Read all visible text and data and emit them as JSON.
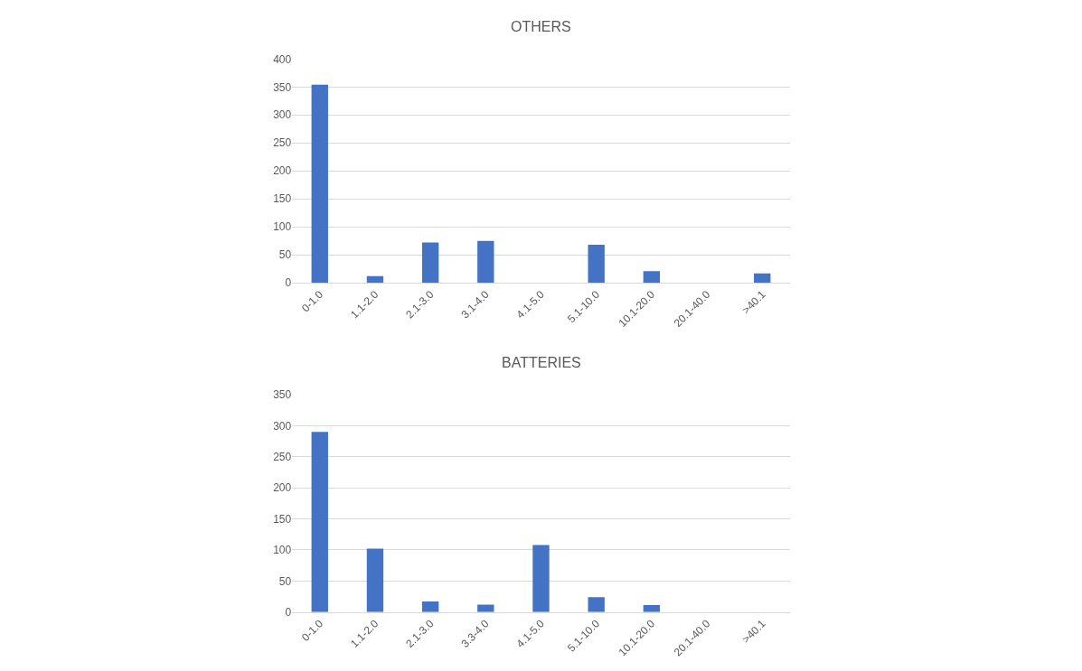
{
  "chart_data": [
    {
      "type": "bar",
      "title": "OTHERS",
      "categories": [
        "0-1.0",
        "1.1-2.0",
        "2.1-3.0",
        "3.1-4.0",
        "4.1-5.0",
        "5.1-10.0",
        "10.1-20.0",
        "20.1-40.0",
        ">40.1"
      ],
      "values": [
        354,
        12,
        72,
        75,
        0,
        68,
        21,
        0,
        17
      ],
      "color": "#4472c4",
      "ylim": [
        0,
        400
      ],
      "yticks": [
        0,
        50,
        100,
        150,
        200,
        250,
        300,
        350,
        400
      ],
      "grid": "y"
    },
    {
      "type": "bar",
      "title": "BATTERIES",
      "categories": [
        "0-1.0",
        "1.1-2.0",
        "2.1-3.0",
        "3.3-4.0",
        "4.1-5.0",
        "5.1-10.0",
        "10.1-20.0",
        "20.1-40.0",
        ">40.1"
      ],
      "values": [
        290,
        102,
        17,
        12,
        108,
        24,
        11,
        0,
        0
      ],
      "color": "#4472c4",
      "ylim": [
        0,
        350
      ],
      "yticks": [
        0,
        50,
        100,
        150,
        200,
        250,
        300,
        350
      ],
      "grid": "y"
    }
  ]
}
